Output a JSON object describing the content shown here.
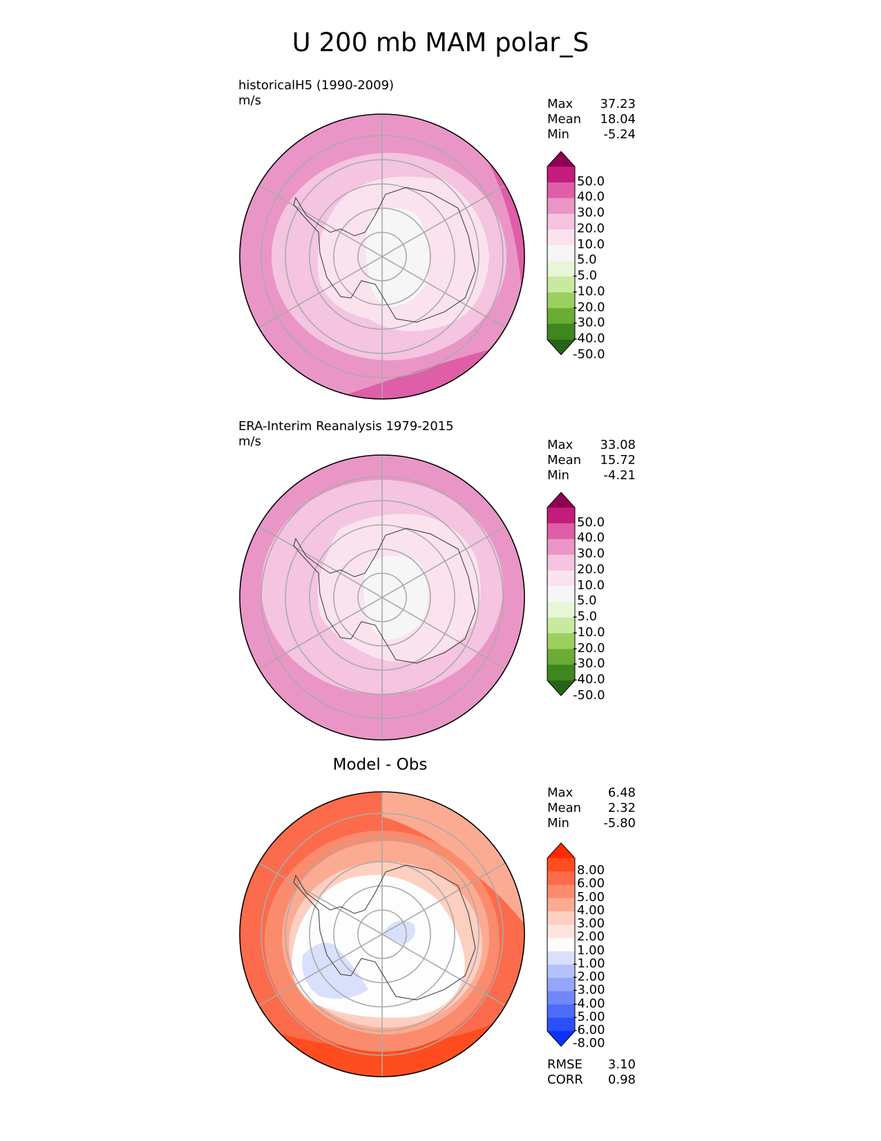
{
  "title": "U 200 mb MAM polar_S",
  "panels": [
    {
      "title_lines": [
        "historicalH5 (1990-2009)",
        "m/s"
      ],
      "stats": [
        [
          "Max",
          "37.23"
        ],
        [
          "Mean",
          "18.04"
        ],
        [
          "Min",
          "-5.24"
        ]
      ],
      "colorbar": {
        "labels": [
          "50.0",
          "40.0",
          "30.0",
          "20.0",
          "10.0",
          "5.0",
          "-5.0",
          "-10.0",
          "-20.0",
          "-30.0",
          "-40.0",
          "-50.0"
        ],
        "colors": [
          "#8e0152",
          "#c51b7d",
          "#de5ea7",
          "#e996c6",
          "#f4c4e1",
          "#fae3ef",
          "#f6f6f6",
          "#e8f5d8",
          "#c9e8a0",
          "#9ccf60",
          "#6bac34",
          "#40861f",
          "#276419"
        ]
      }
    },
    {
      "title_lines": [
        "ERA-Interim Reanalysis 1979-2015",
        "m/s"
      ],
      "stats": [
        [
          "Max",
          "33.08"
        ],
        [
          "Mean",
          "15.72"
        ],
        [
          "Min",
          "-4.21"
        ]
      ],
      "colorbar": {
        "labels": [
          "50.0",
          "40.0",
          "30.0",
          "20.0",
          "10.0",
          "5.0",
          "-5.0",
          "-10.0",
          "-20.0",
          "-30.0",
          "-40.0",
          "-50.0"
        ],
        "colors": [
          "#8e0152",
          "#c51b7d",
          "#de5ea7",
          "#e996c6",
          "#f4c4e1",
          "#fae3ef",
          "#f6f6f6",
          "#e8f5d8",
          "#c9e8a0",
          "#9ccf60",
          "#6bac34",
          "#40861f",
          "#276419"
        ]
      }
    },
    {
      "center_title": "Model - Obs",
      "stats": [
        [
          "Max",
          "6.48"
        ],
        [
          "Mean",
          "2.32"
        ],
        [
          "Min",
          "-5.80"
        ]
      ],
      "colorbar": {
        "labels": [
          "8.00",
          "6.00",
          "5.00",
          "4.00",
          "3.00",
          "2.00",
          "1.00",
          "-1.00",
          "-2.00",
          "-3.00",
          "-4.00",
          "-5.00",
          "-6.00",
          "-8.00"
        ],
        "colors": [
          "#ff2a00",
          "#ff4d1f",
          "#fc6b4b",
          "#fb8b6d",
          "#fcab93",
          "#fdcfc1",
          "#fde5de",
          "#fdfdfd",
          "#d9e0fb",
          "#b5c2fa",
          "#93a6f9",
          "#7088f9",
          "#4e6cfa",
          "#2c4ffb",
          "#0a32fd"
        ]
      },
      "bottom_stats": [
        [
          "RMSE",
          "3.10"
        ],
        [
          "CORR",
          "0.98"
        ]
      ]
    }
  ]
}
